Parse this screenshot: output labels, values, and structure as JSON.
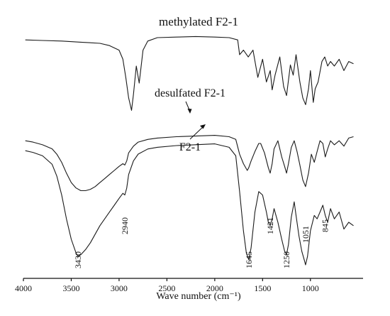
{
  "chart_data": {
    "type": "line",
    "title": "",
    "xlabel": "Wave number (cm⁻¹)",
    "ylabel": "",
    "x_reversed": true,
    "xlim": [
      4000,
      450
    ],
    "x_ticks": [
      4000,
      3500,
      3000,
      2500,
      2000,
      1500,
      1000
    ],
    "series": [
      {
        "name": "methylated F2-1",
        "x": [
          3980,
          3800,
          3600,
          3400,
          3200,
          3100,
          3000,
          2960,
          2930,
          2900,
          2870,
          2850,
          2820,
          2790,
          2750,
          2700,
          2600,
          2400,
          2200,
          2000,
          1850,
          1760,
          1740,
          1700,
          1650,
          1600,
          1550,
          1500,
          1460,
          1420,
          1400,
          1370,
          1320,
          1280,
          1250,
          1210,
          1180,
          1150,
          1110,
          1080,
          1050,
          1020,
          1000,
          970,
          950,
          920,
          880,
          850,
          820,
          790,
          750,
          700,
          650,
          600,
          550
        ],
        "y": [
          0.93,
          0.925,
          0.92,
          0.91,
          0.9,
          0.88,
          0.84,
          0.76,
          0.6,
          0.42,
          0.31,
          0.45,
          0.7,
          0.55,
          0.84,
          0.92,
          0.95,
          0.955,
          0.96,
          0.955,
          0.95,
          0.93,
          0.8,
          0.84,
          0.78,
          0.84,
          0.6,
          0.76,
          0.56,
          0.66,
          0.49,
          0.62,
          0.78,
          0.52,
          0.44,
          0.71,
          0.62,
          0.8,
          0.56,
          0.42,
          0.36,
          0.5,
          0.66,
          0.38,
          0.5,
          0.56,
          0.74,
          0.78,
          0.7,
          0.74,
          0.7,
          0.76,
          0.66,
          0.74,
          0.72
        ]
      },
      {
        "name": "desulfated F2-1",
        "x": [
          3980,
          3900,
          3800,
          3700,
          3650,
          3600,
          3550,
          3500,
          3450,
          3400,
          3350,
          3300,
          3250,
          3200,
          3150,
          3100,
          3050,
          3000,
          2960,
          2940,
          2920,
          2900,
          2850,
          2800,
          2700,
          2600,
          2400,
          2200,
          2000,
          1850,
          1780,
          1740,
          1700,
          1660,
          1645,
          1620,
          1580,
          1540,
          1520,
          1480,
          1440,
          1421,
          1400,
          1380,
          1340,
          1300,
          1270,
          1250,
          1230,
          1200,
          1170,
          1140,
          1110,
          1080,
          1051,
          1020,
          990,
          960,
          930,
          900,
          870,
          845,
          820,
          790,
          750,
          700,
          650,
          600,
          550
        ],
        "y": [
          0.72,
          0.71,
          0.69,
          0.66,
          0.62,
          0.56,
          0.48,
          0.41,
          0.37,
          0.35,
          0.35,
          0.36,
          0.38,
          0.41,
          0.44,
          0.47,
          0.5,
          0.53,
          0.55,
          0.54,
          0.57,
          0.63,
          0.68,
          0.71,
          0.73,
          0.74,
          0.75,
          0.755,
          0.76,
          0.75,
          0.73,
          0.62,
          0.55,
          0.5,
          0.52,
          0.57,
          0.64,
          0.7,
          0.7,
          0.63,
          0.52,
          0.48,
          0.55,
          0.66,
          0.72,
          0.6,
          0.53,
          0.48,
          0.55,
          0.67,
          0.72,
          0.64,
          0.54,
          0.43,
          0.38,
          0.48,
          0.62,
          0.56,
          0.64,
          0.72,
          0.7,
          0.6,
          0.66,
          0.72,
          0.69,
          0.72,
          0.68,
          0.74,
          0.75
        ]
      },
      {
        "name": "F2-1",
        "x": [
          3980,
          3900,
          3800,
          3700,
          3650,
          3600,
          3550,
          3500,
          3450,
          3430,
          3400,
          3350,
          3300,
          3250,
          3200,
          3100,
          3050,
          3000,
          2960,
          2940,
          2920,
          2900,
          2850,
          2800,
          2700,
          2600,
          2400,
          2200,
          2000,
          1850,
          1780,
          1740,
          1700,
          1670,
          1645,
          1620,
          1580,
          1540,
          1500,
          1460,
          1440,
          1421,
          1400,
          1380,
          1340,
          1300,
          1270,
          1250,
          1230,
          1200,
          1170,
          1150,
          1120,
          1090,
          1060,
          1051,
          1030,
          1000,
          960,
          930,
          900,
          870,
          845,
          820,
          790,
          750,
          700,
          650,
          600,
          550
        ],
        "y": [
          0.72,
          0.71,
          0.69,
          0.64,
          0.57,
          0.46,
          0.32,
          0.2,
          0.12,
          0.1,
          0.11,
          0.14,
          0.18,
          0.23,
          0.28,
          0.36,
          0.4,
          0.44,
          0.47,
          0.46,
          0.5,
          0.58,
          0.66,
          0.7,
          0.73,
          0.74,
          0.75,
          0.755,
          0.76,
          0.74,
          0.69,
          0.48,
          0.25,
          0.12,
          0.08,
          0.15,
          0.36,
          0.48,
          0.46,
          0.36,
          0.3,
          0.28,
          0.32,
          0.38,
          0.3,
          0.2,
          0.13,
          0.11,
          0.17,
          0.33,
          0.42,
          0.34,
          0.22,
          0.13,
          0.07,
          0.05,
          0.1,
          0.25,
          0.34,
          0.32,
          0.36,
          0.4,
          0.34,
          0.3,
          0.38,
          0.32,
          0.36,
          0.26,
          0.3,
          0.28
        ]
      }
    ],
    "curve_labels": [
      "methylated F2-1",
      "desulfated F2-1",
      "F2-1"
    ],
    "peak_labels": [
      "3430",
      "2940",
      "1645",
      "1421",
      "1250",
      "1051",
      "845"
    ]
  }
}
